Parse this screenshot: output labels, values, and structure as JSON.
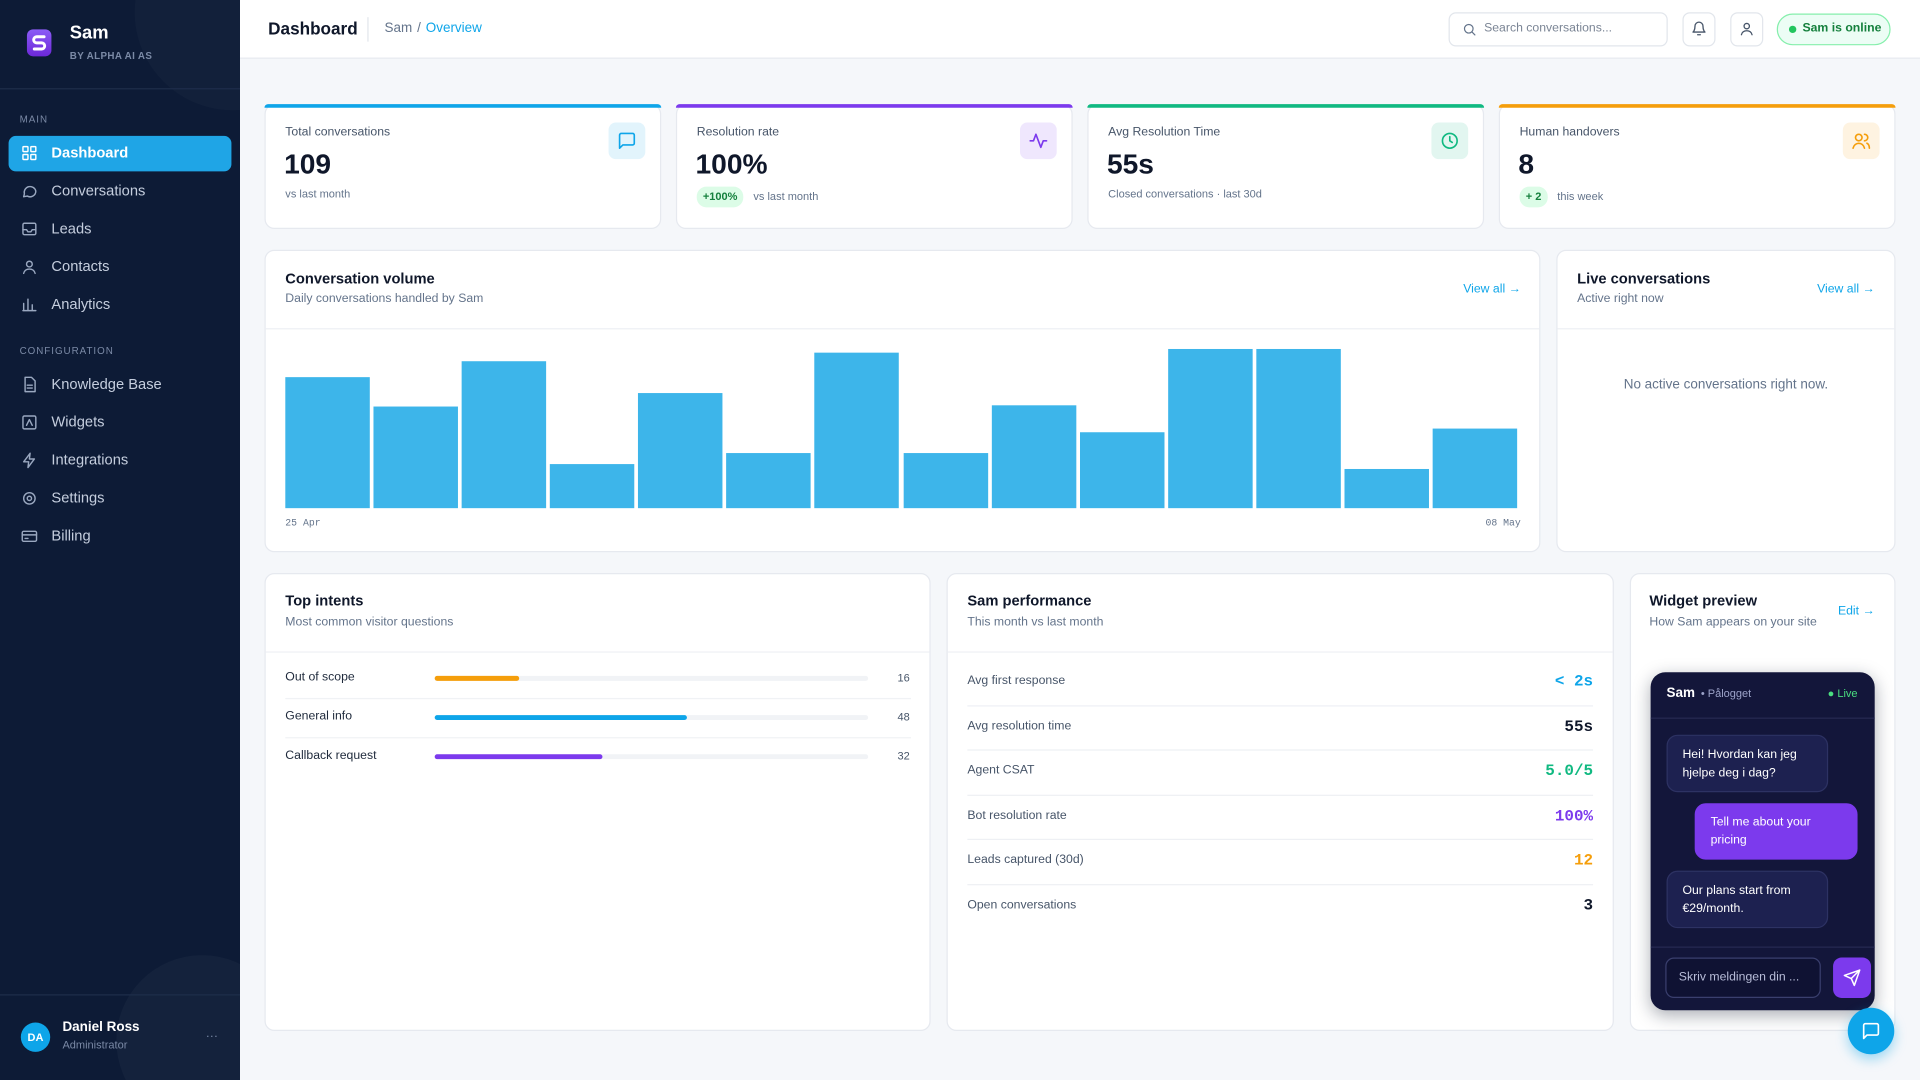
{
  "sidebar": {
    "brand": "Sam",
    "brand_sub": "BY ALPHA AI AS",
    "sections": [
      {
        "title": "MAIN",
        "items": [
          "Dashboard",
          "Conversations",
          "Leads",
          "Contacts",
          "Analytics"
        ]
      },
      {
        "title": "CONFIGURATION",
        "items": [
          "Knowledge Base",
          "Widgets",
          "Integrations",
          "Settings",
          "Billing"
        ]
      }
    ],
    "user": {
      "initials": "DA",
      "name": "Daniel Ross",
      "role": "Administrator",
      "menu": "···"
    }
  },
  "header": {
    "title": "Dashboard",
    "breadcrumb_root": "Sam",
    "breadcrumb_sep": "/",
    "breadcrumb_current": "Overview",
    "search_placeholder": "Search conversations...",
    "status": "Sam is online"
  },
  "stats": [
    {
      "label": "Total conversations",
      "value": 109,
      "note": "vs last month",
      "color": "#0ea5e9"
    },
    {
      "label": "Resolution rate",
      "value": "100%",
      "badge": "+100%",
      "note": "vs last month",
      "color": "#7c3aed"
    },
    {
      "label": "Avg Resolution Time",
      "value": "55s",
      "note": "Closed conversations · last 30d",
      "color": "#10b981"
    },
    {
      "label": "Human handovers",
      "value": 8,
      "badge": "+ 2",
      "note": "this week",
      "color": "#f59e0b"
    }
  ],
  "volume": {
    "title": "Conversation volume",
    "subtitle": "Daily conversations handled by Sam",
    "link": "View all →",
    "values": [
      8.2,
      6.4,
      9.2,
      2.8,
      7.2,
      3.5,
      9.8,
      3.5,
      6.5,
      4.8,
      10,
      10,
      2.5,
      5
    ],
    "color": "#3db5ea",
    "x_start": "25 Apr",
    "x_end": "08 May"
  },
  "live": {
    "title": "Live conversations",
    "subtitle": "Active right now",
    "link": "View all →",
    "empty": "No active conversations right now."
  },
  "intents": {
    "title": "Top intents",
    "subtitle": "Most common visitor questions",
    "items": [
      {
        "label": "Out of scope",
        "value": 16,
        "color": "#f59e0b"
      },
      {
        "label": "General info",
        "value": 48,
        "color": "#0ea5e9"
      },
      {
        "label": "Callback request",
        "value": 32,
        "color": "#7c3aed"
      }
    ]
  },
  "performance": {
    "title": "Sam performance",
    "subtitle": "This month vs last month",
    "rows": [
      {
        "label": "Avg first response",
        "value": "< 2s",
        "color": "#0ea5e9"
      },
      {
        "label": "Avg resolution time",
        "value": "55s",
        "color": "#0f172a"
      },
      {
        "label": "Agent CSAT",
        "value": "5.0/5",
        "color": "#10b981"
      },
      {
        "label": "Bot resolution rate",
        "value": "100%",
        "color": "#7c3aed"
      },
      {
        "label": "Leads captured (30d)",
        "value": 12,
        "color": "#f59e0b"
      },
      {
        "label": "Open conversations",
        "value": 3,
        "color": "#0f172a"
      }
    ]
  },
  "widget": {
    "title": "Widget preview",
    "subtitle": "How Sam appears on your site",
    "link": "Edit →",
    "bot_name": "Sam",
    "presence": "• Pålogget",
    "live": "● Live",
    "messages": [
      {
        "from": "bot",
        "text": "Hei! Hvordan kan jeg hjelpe deg i dag?"
      },
      {
        "from": "user",
        "text": "Tell me about your pricing"
      },
      {
        "from": "bot",
        "text": "Our plans start from €29/month."
      }
    ],
    "input_placeholder": "Skriv meldingen din ..."
  }
}
